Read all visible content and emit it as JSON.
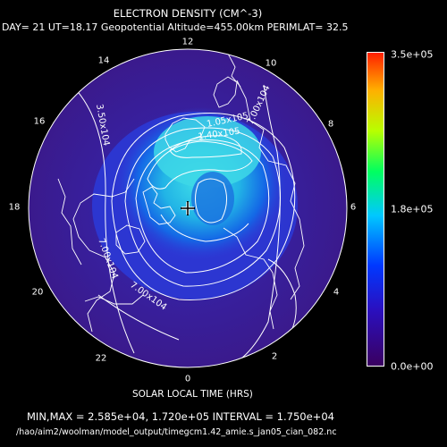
{
  "title": "ELECTRON DENSITY (CM^-3)",
  "subtitle": "DAY= 21 UT=18.17 Geopotential Altitude=455.00km PERIMLAT= 32.5",
  "xlabel": "SOLAR LOCAL TIME (HRS)",
  "minmax_line": "MIN,MAX =  2.585e+04, 1.720e+05 INTERVAL =  1.750e+04",
  "file_path": "/hao/aim2/woolman/model_output/timegcm1.42_amie.s_jan05_cian_082.nc",
  "local_time_labels": [
    "12",
    "10",
    "8",
    "6",
    "4",
    "2",
    "0",
    "22",
    "20",
    "18",
    "16",
    "14"
  ],
  "colorbar": {
    "max_label": "3.5e+05",
    "mid_label": "1.8e+05",
    "min_label": "0.0e+00",
    "max": 350000,
    "min": 0
  },
  "contour_labels": [
    "3.50x10^4",
    "7.00x10^4",
    "7.00x10^4",
    "7.00x10^4",
    "1.05x10^5",
    "1.40x10^5"
  ],
  "colors": {
    "background": "#000000",
    "disk_base": "#3b1e9a",
    "high": "#36d8e8"
  }
}
